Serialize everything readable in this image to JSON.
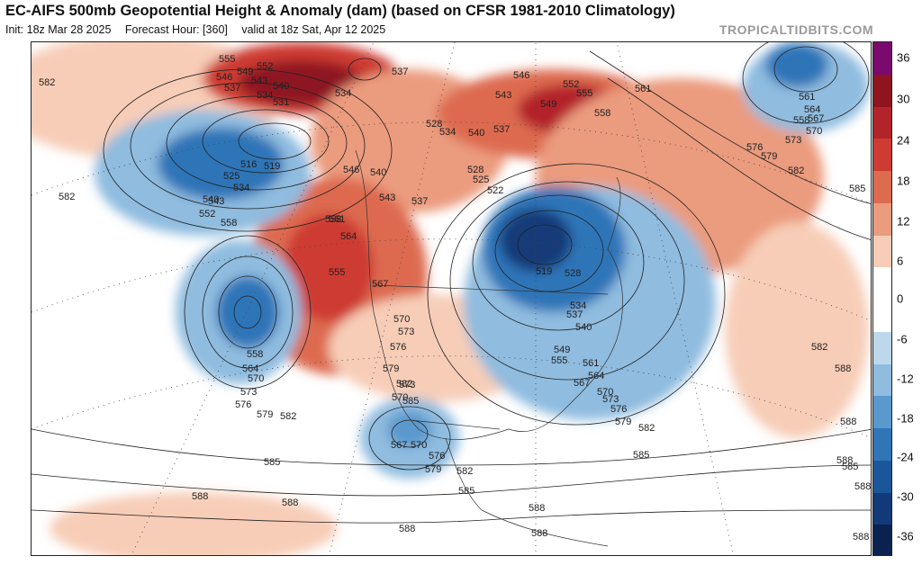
{
  "header": {
    "title": "EC-AIFS 500mb Geopotential Height & Anomaly (dam) (based on CFSR 1981-2010 Climatology)",
    "init": "Init: 18z Mar 28 2025",
    "forecast_hour": "Forecast Hour: [360]",
    "valid": "valid at 18z Sat, Apr 12 2025",
    "credit": "TROPICALTIDBITS.COM"
  },
  "colorbar": {
    "ticks": [
      "36",
      "30",
      "24",
      "18",
      "12",
      "6",
      "0",
      "-6",
      "-12",
      "-18",
      "-24",
      "-30",
      "-36"
    ],
    "colors": [
      "#7a0a6e",
      "#8e1420",
      "#b3232a",
      "#cd3b33",
      "#dd6b50",
      "#eb9b7e",
      "#f7cdb7",
      "#ffffff",
      "#ffffff",
      "#bcd8ea",
      "#8fbcdf",
      "#5a98cd",
      "#2f75b8",
      "#1c569a",
      "#123a78",
      "#0a2250"
    ]
  },
  "map": {
    "contour_labels": [
      {
        "text": "582"
      },
      {
        "text": "555"
      },
      {
        "text": "549"
      },
      {
        "text": "552"
      },
      {
        "text": "546"
      },
      {
        "text": "537"
      },
      {
        "text": "543"
      },
      {
        "text": "540"
      },
      {
        "text": "534"
      },
      {
        "text": "531"
      },
      {
        "text": "537"
      },
      {
        "text": "534"
      },
      {
        "text": "546"
      },
      {
        "text": "552"
      },
      {
        "text": "555"
      },
      {
        "text": "549"
      },
      {
        "text": "543"
      },
      {
        "text": "561"
      },
      {
        "text": "558"
      },
      {
        "text": "528"
      },
      {
        "text": "534"
      },
      {
        "text": "540"
      },
      {
        "text": "537"
      },
      {
        "text": "519"
      },
      {
        "text": "516"
      },
      {
        "text": "525"
      },
      {
        "text": "534"
      },
      {
        "text": "540"
      },
      {
        "text": "543"
      },
      {
        "text": "552"
      },
      {
        "text": "558"
      },
      {
        "text": "546"
      },
      {
        "text": "561"
      },
      {
        "text": "564"
      },
      {
        "text": "567"
      },
      {
        "text": "570"
      },
      {
        "text": "573"
      },
      {
        "text": "576"
      },
      {
        "text": "579"
      },
      {
        "text": "582"
      },
      {
        "text": "585"
      },
      {
        "text": "582"
      },
      {
        "text": "540"
      },
      {
        "text": "543"
      },
      {
        "text": "537"
      },
      {
        "text": "525"
      },
      {
        "text": "528"
      },
      {
        "text": "522"
      },
      {
        "text": "519"
      },
      {
        "text": "528"
      },
      {
        "text": "534"
      },
      {
        "text": "537"
      },
      {
        "text": "540"
      },
      {
        "text": "549"
      },
      {
        "text": "555"
      },
      {
        "text": "561"
      },
      {
        "text": "564"
      },
      {
        "text": "567"
      },
      {
        "text": "570"
      },
      {
        "text": "573"
      },
      {
        "text": "576"
      },
      {
        "text": "579"
      },
      {
        "text": "582"
      },
      {
        "text": "585"
      },
      {
        "text": "561"
      },
      {
        "text": "564"
      },
      {
        "text": "558"
      },
      {
        "text": "567"
      },
      {
        "text": "570"
      },
      {
        "text": "573"
      },
      {
        "text": "576"
      },
      {
        "text": "579"
      },
      {
        "text": "582"
      },
      {
        "text": "585"
      },
      {
        "text": "558"
      },
      {
        "text": "564"
      },
      {
        "text": "570"
      },
      {
        "text": "573"
      },
      {
        "text": "576"
      },
      {
        "text": "573"
      },
      {
        "text": "570"
      },
      {
        "text": "567"
      },
      {
        "text": "570"
      },
      {
        "text": "576"
      },
      {
        "text": "579"
      },
      {
        "text": "582"
      },
      {
        "text": "585"
      },
      {
        "text": "588"
      },
      {
        "text": "588"
      },
      {
        "text": "582"
      },
      {
        "text": "585"
      },
      {
        "text": "588"
      },
      {
        "text": "588"
      },
      {
        "text": "588"
      },
      {
        "text": "588"
      },
      {
        "text": "585"
      },
      {
        "text": "588"
      },
      {
        "text": "588"
      },
      {
        "text": "588"
      },
      {
        "text": "588"
      },
      {
        "text": "582"
      },
      {
        "text": "579"
      },
      {
        "text": "555"
      },
      {
        "text": "558"
      }
    ]
  }
}
